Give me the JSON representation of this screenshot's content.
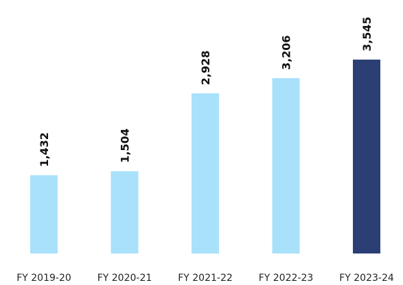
{
  "chart_data": {
    "type": "bar",
    "categories": [
      "FY 2019-20",
      "FY 2020-21",
      "FY 2021-22",
      "FY 2022-23",
      "FY 2023-24"
    ],
    "values": [
      1432,
      1504,
      2928,
      3206,
      3545
    ],
    "value_labels": [
      "1,432",
      "1,504",
      "2,928",
      "3,206",
      "3,545"
    ],
    "colors": [
      "#a9e1fa",
      "#a9e1fa",
      "#a9e1fa",
      "#a9e1fa",
      "#2b3f74"
    ]
  }
}
